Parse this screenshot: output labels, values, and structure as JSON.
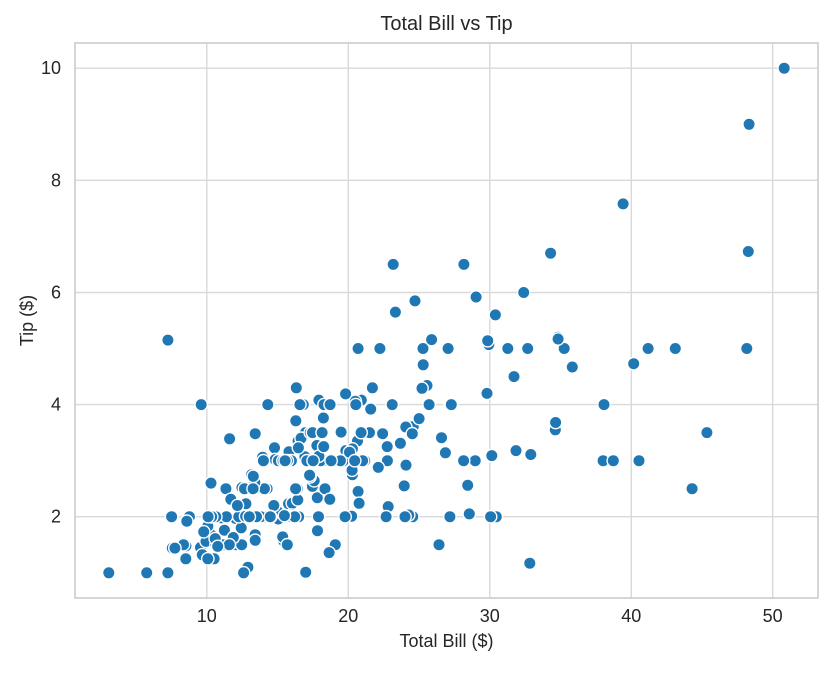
{
  "chart_data": {
    "type": "scatter",
    "title": "Total Bill vs Tip",
    "xlabel": "Total Bill ($)",
    "ylabel": "Tip ($)",
    "xlim": [
      0.68,
      53.2
    ],
    "ylim": [
      0.55,
      10.45
    ],
    "x_ticks": [
      "10",
      "20",
      "30",
      "40",
      "50"
    ],
    "y_ticks": [
      "2",
      "4",
      "6",
      "8",
      "10"
    ],
    "grid": true,
    "legend_position": "none",
    "marker_color": "#1f77b4",
    "marker_edge_color": "#ffffff",
    "background_color": "#ffffff",
    "grid_color": "#d9d9d9",
    "text_color": "#262626",
    "points": [
      [
        16.99,
        1.01
      ],
      [
        10.34,
        1.66
      ],
      [
        21.01,
        3.5
      ],
      [
        23.68,
        3.31
      ],
      [
        24.59,
        3.61
      ],
      [
        25.29,
        4.71
      ],
      [
        8.77,
        2.0
      ],
      [
        26.88,
        3.12
      ],
      [
        15.04,
        1.96
      ],
      [
        14.78,
        3.23
      ],
      [
        10.27,
        1.71
      ],
      [
        35.26,
        5.0
      ],
      [
        15.42,
        1.57
      ],
      [
        18.43,
        3.0
      ],
      [
        14.83,
        3.02
      ],
      [
        21.58,
        3.92
      ],
      [
        10.33,
        1.67
      ],
      [
        16.29,
        3.71
      ],
      [
        16.97,
        3.5
      ],
      [
        20.65,
        3.35
      ],
      [
        17.92,
        4.08
      ],
      [
        20.29,
        2.75
      ],
      [
        15.77,
        2.23
      ],
      [
        39.42,
        7.58
      ],
      [
        19.82,
        3.18
      ],
      [
        17.81,
        2.34
      ],
      [
        13.37,
        2.0
      ],
      [
        12.69,
        2.0
      ],
      [
        21.7,
        4.3
      ],
      [
        19.65,
        3.0
      ],
      [
        9.55,
        1.45
      ],
      [
        18.35,
        2.5
      ],
      [
        15.06,
        3.0
      ],
      [
        20.69,
        2.45
      ],
      [
        17.78,
        3.27
      ],
      [
        24.06,
        3.6
      ],
      [
        16.31,
        2.0
      ],
      [
        16.93,
        3.07
      ],
      [
        18.69,
        2.31
      ],
      [
        31.27,
        5.0
      ],
      [
        16.04,
        2.24
      ],
      [
        17.46,
        2.54
      ],
      [
        13.94,
        3.06
      ],
      [
        9.68,
        1.32
      ],
      [
        30.4,
        5.6
      ],
      [
        18.29,
        3.0
      ],
      [
        22.23,
        5.0
      ],
      [
        32.4,
        6.0
      ],
      [
        28.55,
        2.05
      ],
      [
        18.04,
        3.0
      ],
      [
        12.54,
        2.5
      ],
      [
        10.29,
        2.6
      ],
      [
        34.81,
        5.2
      ],
      [
        9.94,
        1.56
      ],
      [
        25.56,
        4.34
      ],
      [
        19.49,
        3.51
      ],
      [
        38.01,
        3.0
      ],
      [
        26.41,
        1.5
      ],
      [
        11.24,
        1.76
      ],
      [
        48.27,
        6.73
      ],
      [
        20.29,
        3.21
      ],
      [
        13.81,
        2.0
      ],
      [
        11.02,
        1.98
      ],
      [
        18.29,
        3.76
      ],
      [
        17.59,
        2.64
      ],
      [
        20.08,
        3.15
      ],
      [
        16.45,
        3.35
      ],
      [
        3.07,
        1.0
      ],
      [
        20.23,
        2.01
      ],
      [
        15.01,
        2.09
      ],
      [
        12.02,
        1.97
      ],
      [
        17.07,
        3.0
      ],
      [
        26.86,
        3.14
      ],
      [
        25.28,
        5.0
      ],
      [
        14.73,
        2.2
      ],
      [
        10.51,
        1.25
      ],
      [
        17.92,
        3.08
      ],
      [
        27.2,
        4.0
      ],
      [
        22.76,
        3.0
      ],
      [
        17.29,
        2.71
      ],
      [
        19.44,
        3.0
      ],
      [
        16.66,
        3.4
      ],
      [
        10.07,
        1.83
      ],
      [
        32.68,
        5.0
      ],
      [
        15.98,
        2.03
      ],
      [
        34.83,
        5.17
      ],
      [
        13.03,
        2.0
      ],
      [
        18.28,
        4.0
      ],
      [
        24.71,
        5.85
      ],
      [
        21.16,
        3.0
      ],
      [
        28.97,
        3.0
      ],
      [
        22.49,
        3.5
      ],
      [
        5.75,
        1.0
      ],
      [
        16.32,
        4.3
      ],
      [
        22.75,
        3.25
      ],
      [
        40.17,
        4.73
      ],
      [
        27.28,
        4.0
      ],
      [
        12.03,
        1.5
      ],
      [
        21.01,
        3.0
      ],
      [
        12.46,
        1.5
      ],
      [
        11.35,
        2.5
      ],
      [
        15.38,
        3.0
      ],
      [
        44.3,
        2.5
      ],
      [
        22.42,
        3.48
      ],
      [
        20.92,
        4.08
      ],
      [
        15.36,
        1.64
      ],
      [
        20.49,
        4.06
      ],
      [
        25.21,
        4.29
      ],
      [
        18.24,
        3.76
      ],
      [
        14.31,
        4.0
      ],
      [
        14.0,
        3.0
      ],
      [
        7.25,
        1.0
      ],
      [
        38.07,
        4.0
      ],
      [
        23.95,
        2.55
      ],
      [
        25.71,
        4.0
      ],
      [
        17.31,
        3.5
      ],
      [
        29.93,
        5.07
      ],
      [
        10.65,
        1.5
      ],
      [
        12.43,
        1.8
      ],
      [
        24.08,
        2.92
      ],
      [
        11.69,
        2.31
      ],
      [
        13.42,
        1.68
      ],
      [
        14.26,
        2.5
      ],
      [
        15.95,
        2.0
      ],
      [
        12.48,
        2.52
      ],
      [
        29.8,
        4.2
      ],
      [
        8.52,
        1.48
      ],
      [
        14.52,
        2.0
      ],
      [
        11.38,
        2.0
      ],
      [
        22.82,
        2.18
      ],
      [
        19.08,
        1.5
      ],
      [
        20.27,
        2.83
      ],
      [
        11.17,
        1.5
      ],
      [
        12.26,
        2.0
      ],
      [
        18.26,
        3.25
      ],
      [
        8.51,
        1.25
      ],
      [
        10.33,
        2.0
      ],
      [
        14.15,
        2.0
      ],
      [
        16.0,
        2.0
      ],
      [
        13.16,
        2.75
      ],
      [
        17.47,
        3.5
      ],
      [
        34.3,
        6.7
      ],
      [
        41.19,
        5.0
      ],
      [
        27.05,
        5.0
      ],
      [
        16.43,
        2.3
      ],
      [
        8.35,
        1.5
      ],
      [
        18.64,
        1.36
      ],
      [
        11.87,
        1.63
      ],
      [
        9.78,
        1.73
      ],
      [
        7.51,
        2.0
      ],
      [
        14.07,
        2.5
      ],
      [
        13.13,
        2.0
      ],
      [
        17.26,
        2.74
      ],
      [
        24.55,
        2.0
      ],
      [
        19.77,
        2.0
      ],
      [
        29.85,
        5.14
      ],
      [
        48.17,
        5.0
      ],
      [
        25.0,
        3.75
      ],
      [
        13.39,
        2.61
      ],
      [
        16.49,
        2.0
      ],
      [
        21.5,
        3.5
      ],
      [
        12.66,
        2.5
      ],
      [
        16.21,
        2.0
      ],
      [
        13.81,
        2.0
      ],
      [
        17.51,
        3.0
      ],
      [
        24.52,
        3.48
      ],
      [
        20.76,
        2.24
      ],
      [
        31.71,
        4.5
      ],
      [
        10.59,
        1.61
      ],
      [
        10.63,
        2.0
      ],
      [
        50.81,
        10.0
      ],
      [
        15.81,
        3.16
      ],
      [
        7.25,
        5.15
      ],
      [
        31.85,
        3.18
      ],
      [
        16.82,
        4.0
      ],
      [
        32.9,
        3.11
      ],
      [
        17.89,
        2.0
      ],
      [
        14.48,
        2.0
      ],
      [
        9.6,
        4.0
      ],
      [
        34.63,
        3.55
      ],
      [
        34.65,
        3.68
      ],
      [
        23.33,
        5.65
      ],
      [
        45.35,
        3.5
      ],
      [
        23.17,
        6.5
      ],
      [
        40.55,
        3.0
      ],
      [
        20.69,
        5.0
      ],
      [
        20.9,
        3.5
      ],
      [
        30.46,
        2.0
      ],
      [
        18.15,
        3.5
      ],
      [
        23.1,
        4.0
      ],
      [
        15.69,
        1.5
      ],
      [
        19.81,
        4.19
      ],
      [
        28.44,
        2.56
      ],
      [
        15.48,
        2.02
      ],
      [
        16.58,
        4.0
      ],
      [
        7.56,
        1.44
      ],
      [
        10.34,
        2.0
      ],
      [
        43.11,
        5.0
      ],
      [
        13.0,
        2.0
      ],
      [
        13.51,
        2.0
      ],
      [
        18.71,
        4.0
      ],
      [
        12.74,
        2.01
      ],
      [
        13.0,
        2.0
      ],
      [
        16.4,
        2.5
      ],
      [
        20.53,
        4.0
      ],
      [
        16.47,
        3.23
      ],
      [
        26.59,
        3.41
      ],
      [
        38.73,
        3.0
      ],
      [
        24.27,
        2.03
      ],
      [
        12.76,
        2.23
      ],
      [
        30.06,
        2.0
      ],
      [
        25.89,
        5.16
      ],
      [
        48.33,
        9.0
      ],
      [
        13.27,
        2.5
      ],
      [
        28.17,
        6.5
      ],
      [
        12.9,
        1.1
      ],
      [
        28.15,
        3.0
      ],
      [
        11.59,
        1.5
      ],
      [
        7.74,
        1.44
      ],
      [
        30.14,
        3.09
      ],
      [
        12.16,
        2.2
      ],
      [
        13.42,
        3.48
      ],
      [
        8.58,
        1.92
      ],
      [
        15.98,
        3.0
      ],
      [
        13.42,
        1.58
      ],
      [
        16.27,
        2.5
      ],
      [
        10.09,
        2.0
      ],
      [
        20.45,
        3.0
      ],
      [
        13.28,
        2.72
      ],
      [
        22.12,
        2.88
      ],
      [
        24.01,
        2.0
      ],
      [
        15.69,
        3.0
      ],
      [
        11.61,
        3.39
      ],
      [
        10.77,
        1.47
      ],
      [
        15.53,
        3.0
      ],
      [
        10.07,
        1.25
      ],
      [
        12.6,
        1.0
      ],
      [
        32.83,
        1.17
      ],
      [
        35.83,
        4.67
      ],
      [
        29.03,
        5.92
      ],
      [
        27.18,
        2.0
      ],
      [
        22.67,
        2.0
      ],
      [
        17.82,
        1.75
      ],
      [
        18.78,
        3.0
      ]
    ]
  }
}
